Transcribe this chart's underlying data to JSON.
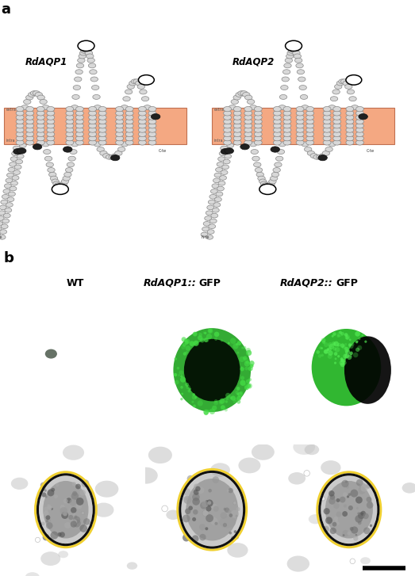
{
  "panel_a_label": "a",
  "panel_b_label": "b",
  "protein1_name": "RdAQP1",
  "protein2_name": "RdAQP2",
  "membrane_color": "#F4A882",
  "membrane_border_color": "#C07050",
  "bead_color_light": "#D8D8D8",
  "bead_color_dark": "#202020",
  "bead_outline": "#888888",
  "col_labels": [
    "WT",
    "RdAQP1",
    "RdAQP2"
  ],
  "gfp_suffix": "::GFP",
  "figure_width": 5.23,
  "figure_height": 7.27,
  "dpi": 100
}
